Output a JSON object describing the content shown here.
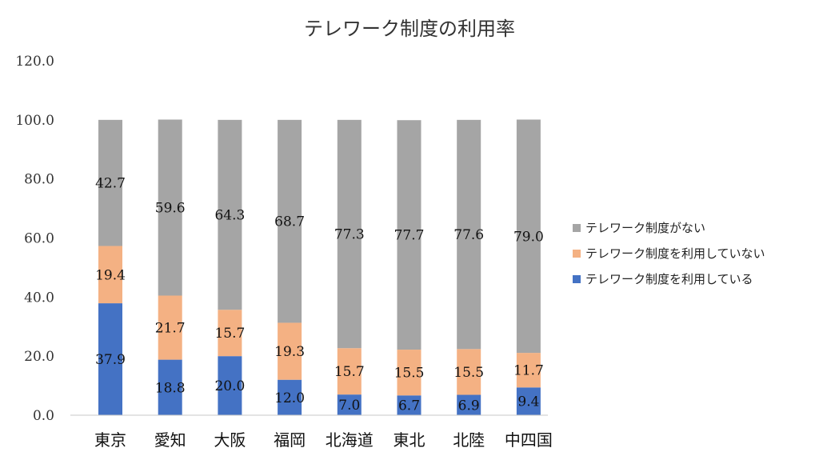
{
  "chart_data": {
    "type": "bar",
    "stacked": true,
    "title": "テレワーク制度の利用率",
    "categories": [
      "東京",
      "愛知",
      "大阪",
      "福岡",
      "北海道",
      "東北",
      "北陸",
      "中四国"
    ],
    "series": [
      {
        "name": "テレワーク制度を利用している",
        "color": "#4472C4",
        "values": [
          37.9,
          18.8,
          20.0,
          12.0,
          7.0,
          6.7,
          6.9,
          9.4
        ]
      },
      {
        "name": "テレワーク制度を利用していない",
        "color": "#F4B183",
        "values": [
          19.4,
          21.7,
          15.7,
          19.3,
          15.7,
          15.5,
          15.5,
          11.7
        ]
      },
      {
        "name": "テレワーク制度がない",
        "color": "#A5A5A5",
        "values": [
          42.7,
          59.6,
          64.3,
          68.7,
          77.3,
          77.7,
          77.6,
          79.0
        ]
      }
    ],
    "labels": [
      [
        "37.9",
        "18.8",
        "20.0",
        "12.0",
        "7.0",
        "6.7",
        "6.9",
        "9.4"
      ],
      [
        "19.4",
        "21.7",
        "15.7",
        "19.3",
        "15.7",
        "15.5",
        "15.5",
        "11.7"
      ],
      [
        "42.7",
        "59.6",
        "64.3",
        "68.7",
        "77.3",
        "77.7",
        "77.6",
        "79.0"
      ]
    ],
    "ylim": [
      0,
      120
    ],
    "yticks": [
      "0.0",
      "20.0",
      "40.0",
      "60.0",
      "80.0",
      "100.0",
      "120.0"
    ],
    "ytick_values": [
      0,
      20,
      40,
      60,
      80,
      100,
      120
    ],
    "grid": false,
    "legend": "right"
  }
}
